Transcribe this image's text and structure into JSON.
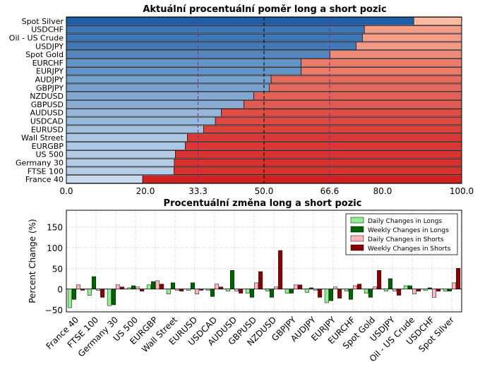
{
  "colors": {
    "long_dark": "#1f5fa8",
    "long_light": "#c6dbef",
    "short_light": "#fcbba1",
    "short_dark": "#d32020",
    "guide_purple": "#7b2a9a",
    "guide_black": "#000000",
    "daily_longs": "#90ee90",
    "weekly_longs": "#006400",
    "daily_shorts": "#ffb6c1",
    "weekly_shorts": "#8b0000"
  },
  "chart_data": [
    {
      "type": "bar",
      "orientation": "horizontal",
      "stacked": true,
      "title": "Aktuální procentuální poměr long a short pozic",
      "categories": [
        "Spot Silver",
        "USDCHF",
        "Oil - US Crude",
        "USDJPY",
        "Spot Gold",
        "EURCHF",
        "EURJPY",
        "AUDJPY",
        "GBPJPY",
        "NZDUSD",
        "GBPUSD",
        "AUDUSD",
        "USDCAD",
        "EURUSD",
        "Wall Street",
        "EURGBP",
        "US 500",
        "Germany 30",
        "FTSE 100",
        "France 40"
      ],
      "long_values": [
        87.9,
        75.4,
        74.9,
        73.3,
        66.7,
        59.4,
        59.4,
        51.8,
        51.3,
        47.4,
        44.9,
        39.2,
        37.7,
        34.7,
        30.6,
        30.1,
        27.6,
        27.3,
        27.2,
        19.3
      ],
      "xlim": [
        0,
        100
      ],
      "xticks": [
        "0.0",
        "20.0",
        "33.3",
        "50.0",
        "66.6",
        "80.0",
        "100.0"
      ],
      "highlight_ticks": [
        "33.3",
        "66.6"
      ],
      "guide_lines": [
        33.3,
        50.0,
        66.6
      ],
      "grid": true
    },
    {
      "type": "bar",
      "title": "Procentuální změna long a short pozic",
      "ylabel": "Percent Change (%)",
      "ylim": [
        -55,
        190
      ],
      "yticks": [
        "150",
        "100",
        "50",
        "0",
        "−50"
      ],
      "categories": [
        "France 40",
        "FTSE 100",
        "Germany 30",
        "US 500",
        "EURGBP",
        "Wall Street",
        "EURUSD",
        "USDCAD",
        "AUDUSD",
        "GBPUSD",
        "NZDUSD",
        "GBPJPY",
        "AUDJPY",
        "EURJPY",
        "EURCHF",
        "Spot Gold",
        "USDJPY",
        "Oil - US Crude",
        "USDCHF",
        "Spot Silver"
      ],
      "legend_position": "top-right",
      "grid": true,
      "series": [
        {
          "name": "Daily Changes in Longs",
          "values": [
            -45,
            -15,
            -40,
            3,
            10,
            -12,
            -3,
            -3,
            -5,
            -10,
            -5,
            -10,
            -8,
            -33,
            -5,
            -10,
            -5,
            8,
            -3,
            -5
          ]
        },
        {
          "name": "Weekly Changes in Longs",
          "values": [
            -25,
            30,
            -38,
            8,
            18,
            15,
            15,
            -18,
            45,
            -20,
            -20,
            -10,
            3,
            -28,
            -25,
            -20,
            25,
            8,
            3,
            -5
          ]
        },
        {
          "name": "Daily Changes in Shorts",
          "values": [
            10,
            -3,
            10,
            5,
            20,
            -3,
            -12,
            12,
            -5,
            15,
            5,
            10,
            -3,
            5,
            8,
            5,
            -5,
            -12,
            -20,
            15
          ]
        },
        {
          "name": "Weekly Changes in Shorts",
          "values": [
            -3,
            -20,
            5,
            -5,
            12,
            -5,
            -3,
            5,
            -10,
            42,
            93,
            10,
            -20,
            -22,
            12,
            45,
            -15,
            -5,
            -5,
            50
          ]
        }
      ]
    }
  ]
}
